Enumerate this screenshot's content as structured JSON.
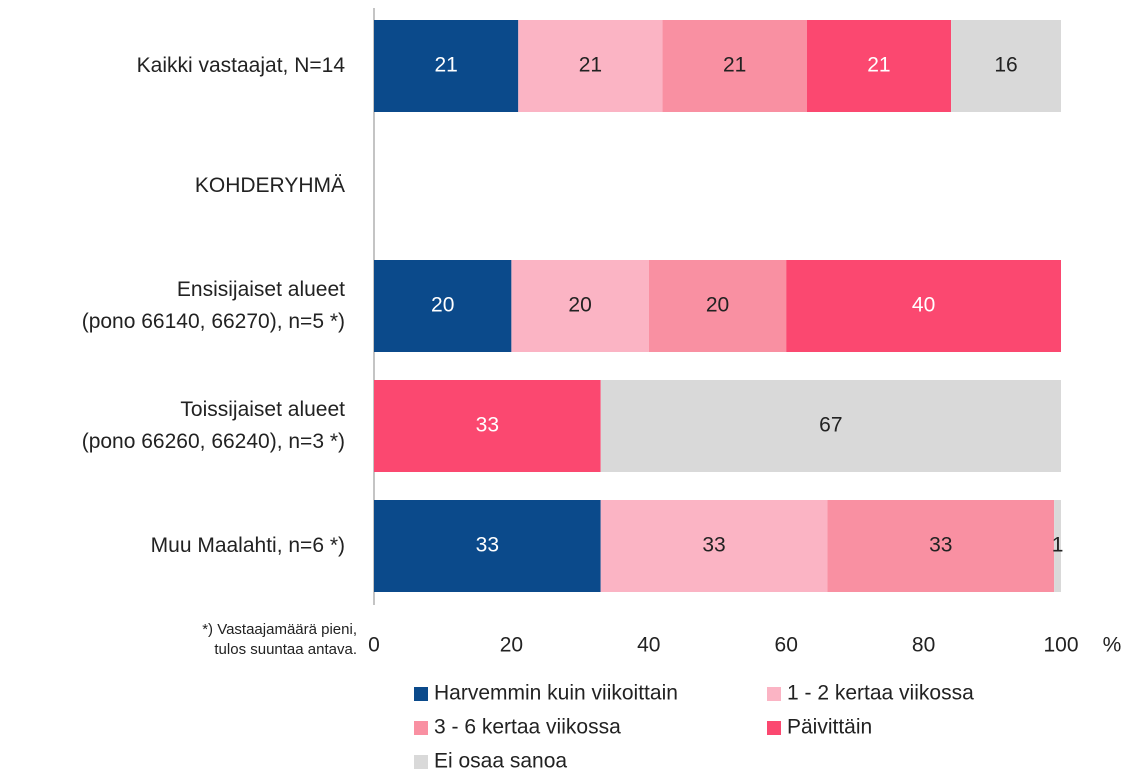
{
  "chart_data": {
    "type": "stacked-bar-horizontal",
    "categories": [
      "Kaikki vastaajat, N=14",
      "KOHDERYHMÄ",
      "Ensisijaiset alueet\n(pono 66140, 66270), n=5 *)",
      "Toissijaiset alueet\n(pono 66260, 66240), n=3 *)",
      "Muu Maalahti, n=6 *)"
    ],
    "series": [
      {
        "name": "Harvemmin kuin viikoittain",
        "color": "#0b4a8b",
        "label_color": "#ffffff",
        "values": [
          21,
          null,
          20,
          null,
          33
        ]
      },
      {
        "name": "1 - 2 kertaa viikossa",
        "color": "#fbb4c4",
        "label_color": "#222222",
        "values": [
          21,
          null,
          20,
          null,
          33
        ]
      },
      {
        "name": "3 - 6 kertaa viikossa",
        "color": "#f990a2",
        "label_color": "#222222",
        "values": [
          21,
          null,
          20,
          null,
          33
        ]
      },
      {
        "name": "Päivittäin",
        "color": "#fb4870",
        "label_color": "#ffffff",
        "values": [
          21,
          null,
          40,
          33,
          null
        ]
      },
      {
        "name": "Ei osaa sanoa",
        "color": "#d9d9d9",
        "label_color": "#222222",
        "values": [
          16,
          null,
          null,
          67,
          1
        ]
      }
    ],
    "xlim": [
      0,
      100
    ],
    "xticks": [
      0,
      20,
      40,
      60,
      80,
      100
    ],
    "x_unit": "%",
    "footnote": "*) Vastaajamäärä pieni,\ntulos suuntaa antava."
  }
}
